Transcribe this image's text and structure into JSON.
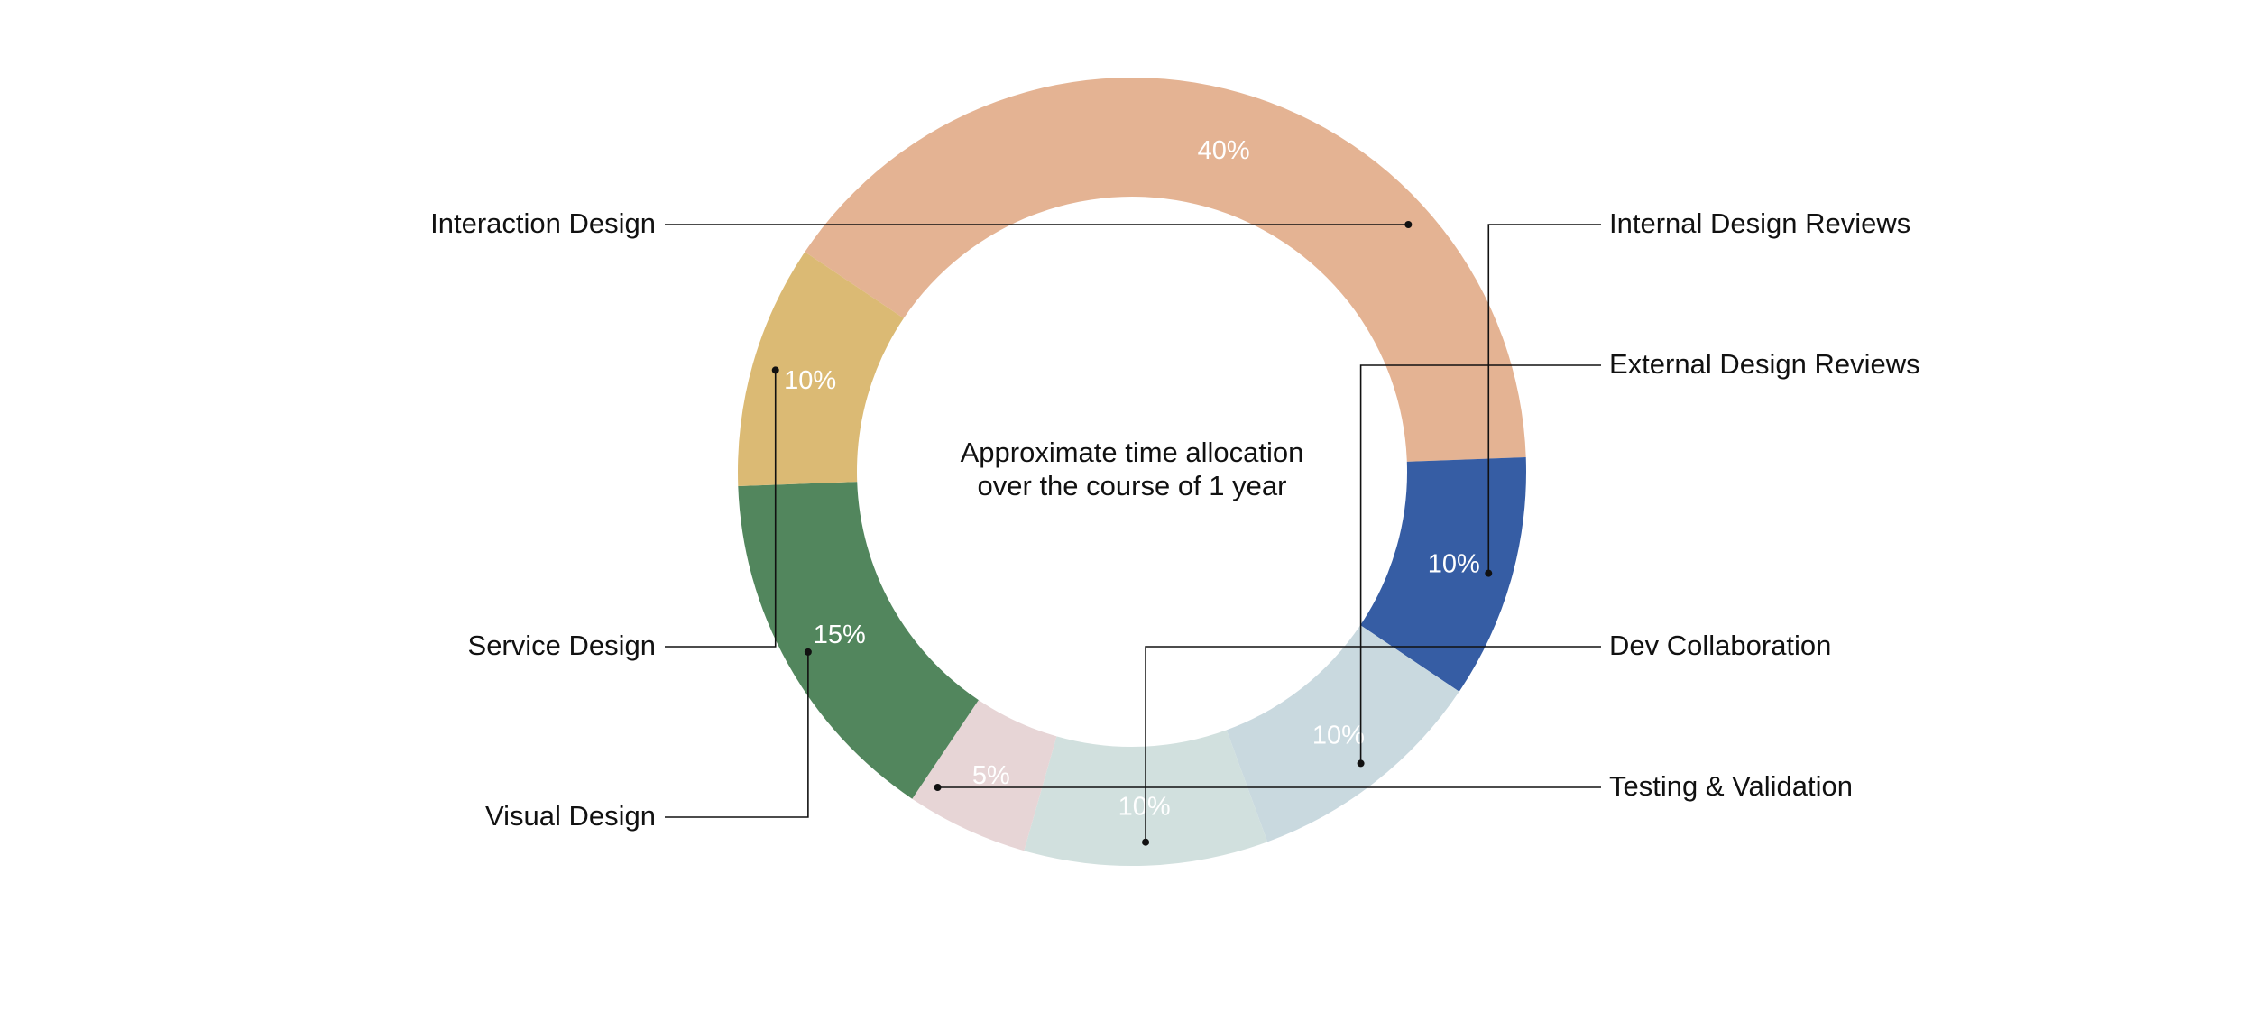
{
  "chart_data": {
    "type": "pie",
    "style": "donut",
    "center_text": [
      "Approximate time allocation",
      "over the course of 1 year"
    ],
    "slices": [
      {
        "label": "Interaction Design",
        "value": 40,
        "value_label": "40%",
        "color": "#E4B393"
      },
      {
        "label": "Internal Design Reviews",
        "value": 10,
        "value_label": "10%",
        "color": "#365DA4"
      },
      {
        "label": "External Design Reviews",
        "value": 10,
        "value_label": "10%",
        "color": "#C9D9DF"
      },
      {
        "label": "Dev Collaboration",
        "value": 10,
        "value_label": "10%",
        "color": "#D1E0DE"
      },
      {
        "label": "Testing & Validation",
        "value": 5,
        "value_label": "5%",
        "color": "#E7D5D6"
      },
      {
        "label": "Visual Design",
        "value": 15,
        "value_label": "15%",
        "color": "#52865D"
      },
      {
        "label": "Service Design",
        "value": 10,
        "value_label": "10%",
        "color": "#DBBA74"
      }
    ]
  }
}
